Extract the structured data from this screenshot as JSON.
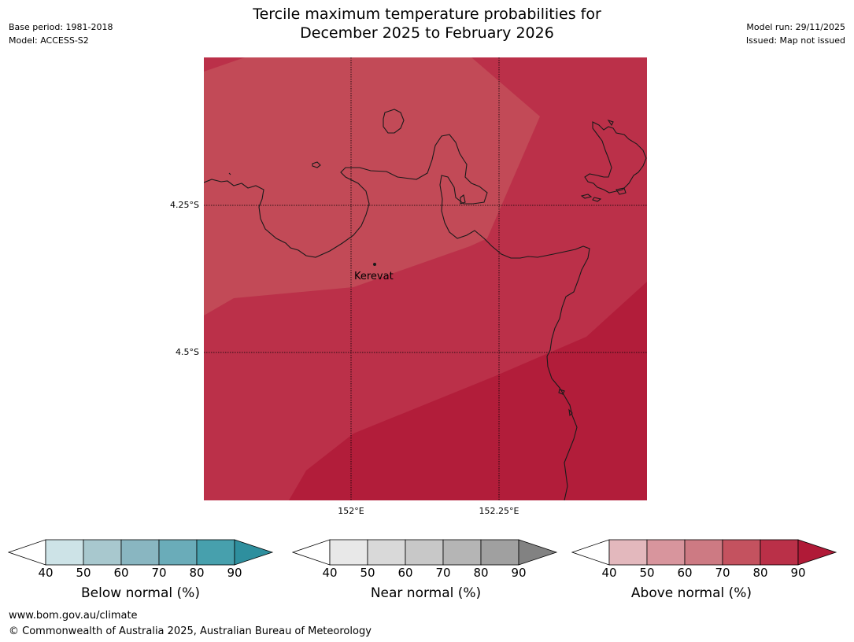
{
  "header": {
    "base_period": "Base period: 1981-2018",
    "model": "Model: ACCESS-S2",
    "title_line1": "Tercile maximum temperature probabilities for",
    "title_line2": "December 2025 to February 2026",
    "model_run": "Model run: 29/11/2025",
    "issued": "Issued: Map not issued"
  },
  "map": {
    "place_label": "Kerevat",
    "lat_labels": [
      "4.25°S",
      "4.5°S"
    ],
    "lon_labels": [
      "152°E",
      "152.25°E"
    ],
    "colors": {
      "above_60_70": "#c24a57",
      "above_70_80": "#bb3049",
      "above_80_90": "#b21d3a",
      "coastline": "#1a1a1a"
    }
  },
  "colorbars": {
    "below": {
      "label": "Below normal (%)",
      "ticks": [
        "40",
        "50",
        "60",
        "70",
        "80",
        "90"
      ],
      "colors": [
        "#cde3e7",
        "#a8c8ce",
        "#89b6c1",
        "#6aacb9",
        "#47a0ad",
        "#2e8f9e"
      ]
    },
    "near": {
      "label": "Near normal (%)",
      "ticks": [
        "40",
        "50",
        "60",
        "70",
        "80",
        "90"
      ],
      "colors": [
        "#e8e8e8",
        "#d9d9d9",
        "#c8c8c8",
        "#b5b5b5",
        "#a0a0a0",
        "#828282"
      ]
    },
    "above": {
      "label": "Above normal (%)",
      "ticks": [
        "40",
        "50",
        "60",
        "70",
        "80",
        "90"
      ],
      "colors": [
        "#e3b8bd",
        "#d8959d",
        "#cd7a83",
        "#c4525f",
        "#ba3048",
        "#b01a37"
      ]
    }
  },
  "footer": {
    "url": "www.bom.gov.au/climate",
    "copyright": "© Commonwealth of Australia 2025, Australian Bureau of Meteorology"
  }
}
